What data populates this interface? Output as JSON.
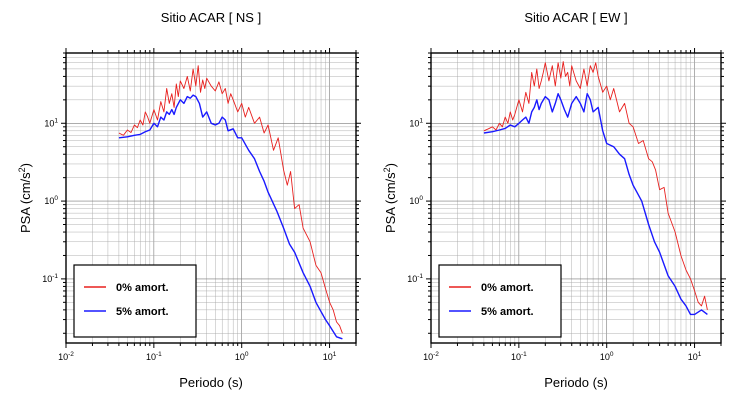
{
  "chart_data": [
    {
      "type": "line",
      "title": "Sitio ACAR [ NS ]",
      "xlabel": "Periodo (s)",
      "ylabel": "PSA (cm/s²)",
      "ylabel_main": "PSA (cm/s",
      "ylabel_sup": "2",
      "ylabel_end": ")",
      "xscale": "log",
      "yscale": "log",
      "xlim": [
        0.01,
        20
      ],
      "ylim": [
        0.015,
        80
      ],
      "x_ticks": [
        {
          "base": "10",
          "exp": "-2"
        },
        {
          "base": "10",
          "exp": "-1"
        },
        {
          "base": "10",
          "exp": "0"
        },
        {
          "base": "10",
          "exp": "1"
        }
      ],
      "y_ticks": [
        {
          "base": "10",
          "exp": "-1"
        },
        {
          "base": "10",
          "exp": "0"
        },
        {
          "base": "10",
          "exp": "1"
        }
      ],
      "grid": true,
      "legend_position": "bottom-left",
      "series": [
        {
          "name": "0% amort.",
          "color": "#e8201e",
          "x": [
            0.04,
            0.045,
            0.05,
            0.055,
            0.06,
            0.065,
            0.07,
            0.075,
            0.08,
            0.085,
            0.09,
            0.1,
            0.11,
            0.12,
            0.13,
            0.14,
            0.15,
            0.16,
            0.17,
            0.18,
            0.19,
            0.2,
            0.22,
            0.24,
            0.26,
            0.28,
            0.3,
            0.32,
            0.34,
            0.36,
            0.38,
            0.4,
            0.45,
            0.5,
            0.55,
            0.6,
            0.65,
            0.7,
            0.75,
            0.8,
            0.9,
            1.0,
            1.1,
            1.2,
            1.4,
            1.6,
            1.8,
            2.0,
            2.3,
            2.6,
            3.0,
            3.3,
            3.6,
            4.0,
            4.5,
            5.0,
            6.0,
            7.0,
            8.0,
            9.0,
            10.0,
            11.0,
            12.0,
            13.0,
            14.0
          ],
          "y": [
            7.5,
            7.0,
            8.2,
            7.6,
            9.5,
            8.8,
            11,
            9.5,
            14,
            12,
            10,
            15,
            11,
            19,
            14,
            28,
            18,
            24,
            16,
            32,
            22,
            35,
            28,
            40,
            26,
            50,
            30,
            55,
            25,
            36,
            28,
            38,
            30,
            26,
            34,
            24,
            28,
            18,
            24,
            20,
            14,
            18,
            12,
            16,
            10,
            12,
            7.5,
            9.5,
            4.5,
            6.5,
            2.5,
            1.6,
            2.4,
            0.8,
            0.9,
            0.45,
            0.3,
            0.15,
            0.12,
            0.075,
            0.05,
            0.04,
            0.028,
            0.025,
            0.02
          ]
        },
        {
          "name": "5% amort.",
          "color": "#1a1aff",
          "x": [
            0.04,
            0.05,
            0.06,
            0.07,
            0.08,
            0.09,
            0.1,
            0.11,
            0.12,
            0.13,
            0.14,
            0.15,
            0.16,
            0.17,
            0.18,
            0.2,
            0.22,
            0.24,
            0.26,
            0.28,
            0.3,
            0.33,
            0.36,
            0.4,
            0.45,
            0.5,
            0.55,
            0.6,
            0.65,
            0.7,
            0.8,
            0.9,
            1.0,
            1.2,
            1.4,
            1.6,
            1.8,
            2.0,
            2.5,
            3.0,
            3.5,
            4.0,
            5.0,
            6.0,
            7.0,
            8.0,
            9.0,
            10.0,
            12.0,
            14.0
          ],
          "y": [
            6.5,
            6.7,
            7.0,
            7.2,
            7.8,
            8.2,
            10,
            9.0,
            12,
            11,
            14,
            13,
            15,
            13,
            16,
            20,
            18,
            22,
            21,
            23,
            22,
            18,
            12,
            14,
            10,
            9.5,
            10,
            12,
            11,
            8,
            8.5,
            6.5,
            6.5,
            4.5,
            3.5,
            2.4,
            1.8,
            1.3,
            0.75,
            0.45,
            0.28,
            0.22,
            0.12,
            0.08,
            0.05,
            0.038,
            0.03,
            0.025,
            0.018,
            0.017
          ]
        }
      ]
    },
    {
      "type": "line",
      "title": "Sitio ACAR [ EW ]",
      "xlabel": "Periodo (s)",
      "ylabel": "PSA (cm/s²)",
      "ylabel_main": "PSA (cm/s",
      "ylabel_sup": "2",
      "ylabel_end": ")",
      "xscale": "log",
      "yscale": "log",
      "xlim": [
        0.01,
        20
      ],
      "ylim": [
        0.015,
        80
      ],
      "x_ticks": [
        {
          "base": "10",
          "exp": "-2"
        },
        {
          "base": "10",
          "exp": "-1"
        },
        {
          "base": "10",
          "exp": "0"
        },
        {
          "base": "10",
          "exp": "1"
        }
      ],
      "y_ticks": [
        {
          "base": "10",
          "exp": "-1"
        },
        {
          "base": "10",
          "exp": "0"
        },
        {
          "base": "10",
          "exp": "1"
        }
      ],
      "grid": true,
      "legend_position": "bottom-left",
      "series": [
        {
          "name": "0% amort.",
          "color": "#e8201e",
          "x": [
            0.04,
            0.045,
            0.05,
            0.055,
            0.06,
            0.065,
            0.07,
            0.075,
            0.08,
            0.085,
            0.09,
            0.1,
            0.11,
            0.12,
            0.13,
            0.14,
            0.15,
            0.16,
            0.17,
            0.18,
            0.19,
            0.2,
            0.22,
            0.24,
            0.26,
            0.28,
            0.3,
            0.32,
            0.34,
            0.36,
            0.38,
            0.4,
            0.45,
            0.5,
            0.55,
            0.6,
            0.65,
            0.7,
            0.75,
            0.8,
            0.9,
            1.0,
            1.1,
            1.2,
            1.4,
            1.6,
            1.8,
            2.0,
            2.3,
            2.6,
            3.0,
            3.3,
            3.6,
            4.0,
            4.5,
            5.0,
            6.0,
            7.0,
            8.0,
            9.0,
            10.0,
            11.0,
            12.0,
            13.0,
            14.0
          ],
          "y": [
            8,
            8.5,
            9,
            8.2,
            10,
            9,
            12,
            10,
            14,
            11,
            13,
            20,
            14,
            25,
            18,
            45,
            30,
            50,
            28,
            35,
            45,
            60,
            35,
            55,
            30,
            60,
            38,
            62,
            40,
            45,
            30,
            55,
            35,
            28,
            50,
            30,
            55,
            45,
            60,
            40,
            25,
            30,
            20,
            28,
            14,
            18,
            10,
            9,
            5.5,
            6,
            3.5,
            3.2,
            2.5,
            1.4,
            1.5,
            0.7,
            0.4,
            0.2,
            0.13,
            0.1,
            0.07,
            0.05,
            0.045,
            0.06,
            0.04
          ]
        },
        {
          "name": "5% amort.",
          "color": "#1a1aff",
          "x": [
            0.04,
            0.05,
            0.06,
            0.07,
            0.08,
            0.09,
            0.1,
            0.11,
            0.12,
            0.13,
            0.14,
            0.15,
            0.16,
            0.17,
            0.18,
            0.2,
            0.22,
            0.24,
            0.26,
            0.28,
            0.3,
            0.33,
            0.36,
            0.4,
            0.45,
            0.5,
            0.55,
            0.6,
            0.65,
            0.7,
            0.8,
            0.9,
            1.0,
            1.2,
            1.4,
            1.6,
            1.8,
            2.0,
            2.5,
            3.0,
            3.5,
            4.0,
            5.0,
            6.0,
            7.0,
            8.0,
            9.0,
            10.0,
            12.0,
            14.0
          ],
          "y": [
            7.5,
            7.8,
            8.2,
            8.6,
            9.5,
            9.0,
            10,
            11,
            12,
            10,
            14,
            16,
            20,
            15,
            18,
            22,
            20,
            14,
            18,
            24,
            20,
            15,
            12,
            18,
            22,
            18,
            14,
            24,
            20,
            14,
            16,
            8,
            5.5,
            5.0,
            4.0,
            3.5,
            2.2,
            1.6,
            1.0,
            0.5,
            0.3,
            0.22,
            0.11,
            0.08,
            0.055,
            0.045,
            0.035,
            0.035,
            0.04,
            0.035
          ]
        }
      ]
    }
  ]
}
